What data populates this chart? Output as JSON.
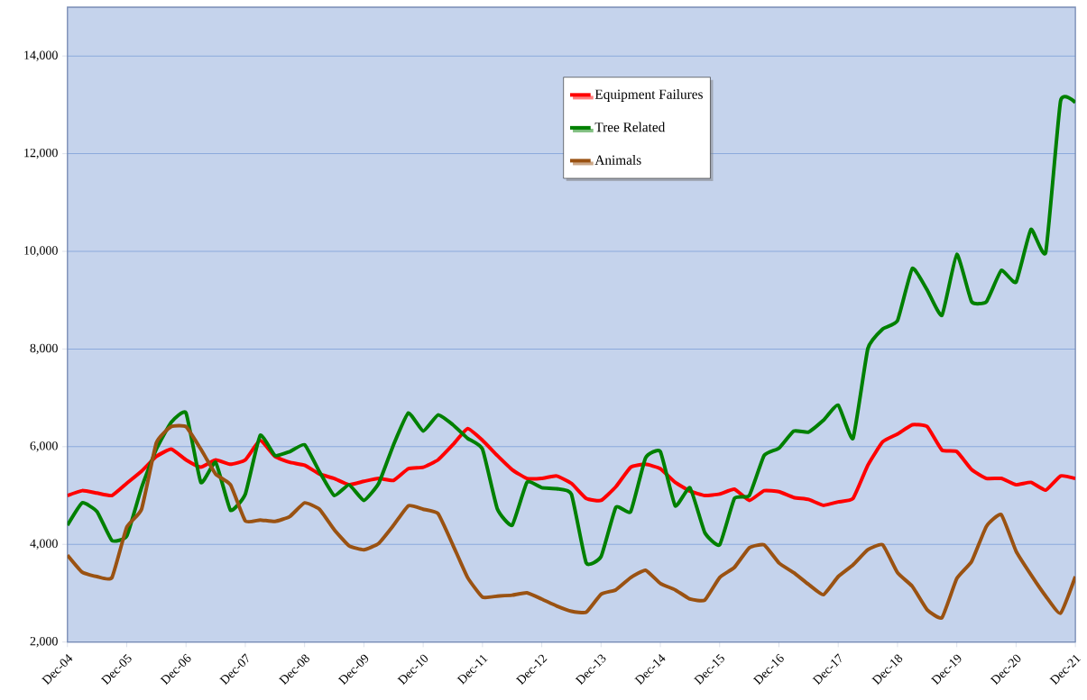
{
  "chart_data": {
    "type": "line",
    "x": [
      "2004-12",
      "2005-03",
      "2005-06",
      "2005-09",
      "2005-12",
      "2006-03",
      "2006-06",
      "2006-09",
      "2006-12",
      "2007-03",
      "2007-06",
      "2007-09",
      "2007-12",
      "2008-03",
      "2008-06",
      "2008-09",
      "2008-12",
      "2009-03",
      "2009-06",
      "2009-09",
      "2009-12",
      "2010-03",
      "2010-06",
      "2010-09",
      "2010-12",
      "2011-03",
      "2011-06",
      "2011-09",
      "2011-12",
      "2012-03",
      "2012-06",
      "2012-09",
      "2012-12",
      "2013-03",
      "2013-06",
      "2013-09",
      "2013-12",
      "2014-03",
      "2014-06",
      "2014-09",
      "2014-12",
      "2015-03",
      "2015-06",
      "2015-09",
      "2015-12",
      "2016-03",
      "2016-06",
      "2016-09",
      "2016-12",
      "2017-03",
      "2017-06",
      "2017-09",
      "2017-12",
      "2018-03",
      "2018-06",
      "2018-09",
      "2018-12",
      "2019-03",
      "2019-06",
      "2019-09",
      "2019-12",
      "2020-03",
      "2020-06",
      "2020-09",
      "2020-12",
      "2021-03",
      "2021-06",
      "2021-09",
      "2021-12"
    ],
    "series": [
      {
        "name": "Equipment Failures",
        "color": "#ff0000",
        "values": [
          5000,
          5100,
          5050,
          5000,
          5250,
          5500,
          5800,
          5950,
          5730,
          5580,
          5730,
          5640,
          5730,
          6130,
          5800,
          5680,
          5620,
          5440,
          5350,
          5220,
          5290,
          5350,
          5310,
          5550,
          5580,
          5730,
          6040,
          6370,
          6130,
          5820,
          5530,
          5350,
          5350,
          5400,
          5250,
          4940,
          4900,
          5180,
          5580,
          5640,
          5550,
          5270,
          5090,
          5000,
          5030,
          5130,
          4900,
          5100,
          5080,
          4960,
          4920,
          4800,
          4870,
          4940,
          5620,
          6100,
          6260,
          6450,
          6410,
          5930,
          5900,
          5530,
          5350,
          5350,
          5220,
          5270,
          5110,
          5400,
          5350
        ]
      },
      {
        "name": "Tree Related",
        "color": "#008000",
        "values": [
          4390,
          4850,
          4670,
          4080,
          4170,
          5160,
          5950,
          6500,
          6690,
          5270,
          5680,
          4700,
          5030,
          6230,
          5820,
          5900,
          6040,
          5490,
          5000,
          5220,
          4900,
          5250,
          6040,
          6690,
          6320,
          6650,
          6450,
          6170,
          5950,
          4730,
          4390,
          5270,
          5160,
          5140,
          5030,
          3620,
          3750,
          4760,
          4670,
          5770,
          5900,
          4790,
          5160,
          4240,
          3990,
          4940,
          5000,
          5820,
          5970,
          6320,
          6300,
          6540,
          6850,
          6170,
          8010,
          8410,
          8580,
          9650,
          9210,
          8690,
          9940,
          8970,
          8970,
          9610,
          9370,
          10450,
          9980,
          13080,
          13050
        ]
      },
      {
        "name": "Animals",
        "color": "#9a5212",
        "values": [
          3780,
          3430,
          3340,
          3320,
          4350,
          4720,
          6080,
          6410,
          6410,
          5950,
          5440,
          5220,
          4480,
          4500,
          4470,
          4570,
          4850,
          4720,
          4300,
          3970,
          3890,
          4020,
          4390,
          4790,
          4720,
          4630,
          3990,
          3320,
          2920,
          2940,
          2960,
          3010,
          2880,
          2740,
          2630,
          2610,
          2980,
          3070,
          3320,
          3470,
          3200,
          3070,
          2880,
          2860,
          3320,
          3530,
          3930,
          3990,
          3620,
          3420,
          3180,
          2970,
          3340,
          3580,
          3890,
          3990,
          3420,
          3140,
          2660,
          2500,
          3300,
          3650,
          4370,
          4610,
          3860,
          3380,
          2940,
          2590,
          3340
        ]
      }
    ],
    "xlim": [
      "2004-12",
      "2021-12"
    ],
    "xticks": [
      {
        "value": "2004-12",
        "label": "Dec-04"
      },
      {
        "value": "2005-12",
        "label": "Dec-05"
      },
      {
        "value": "2006-12",
        "label": "Dec-06"
      },
      {
        "value": "2007-12",
        "label": "Dec-07"
      },
      {
        "value": "2008-12",
        "label": "Dec-08"
      },
      {
        "value": "2009-12",
        "label": "Dec-09"
      },
      {
        "value": "2010-12",
        "label": "Dec-10"
      },
      {
        "value": "2011-12",
        "label": "Dec-11"
      },
      {
        "value": "2012-12",
        "label": "Dec-12"
      },
      {
        "value": "2013-12",
        "label": "Dec-13"
      },
      {
        "value": "2014-12",
        "label": "Dec-14"
      },
      {
        "value": "2015-12",
        "label": "Dec-15"
      },
      {
        "value": "2016-12",
        "label": "Dec-16"
      },
      {
        "value": "2017-12",
        "label": "Dec-17"
      },
      {
        "value": "2018-12",
        "label": "Dec-18"
      },
      {
        "value": "2019-12",
        "label": "Dec-19"
      },
      {
        "value": "2020-12",
        "label": "Dec-20"
      },
      {
        "value": "2021-12",
        "label": "Dec-21"
      }
    ],
    "ylim": [
      2000,
      15000
    ],
    "yticks": [
      {
        "value": 2000,
        "label": "2,000"
      },
      {
        "value": 4000,
        "label": "4,000"
      },
      {
        "value": 6000,
        "label": "6,000"
      },
      {
        "value": 8000,
        "label": "8,000"
      },
      {
        "value": 10000,
        "label": "10,000"
      },
      {
        "value": 12000,
        "label": "12,000"
      },
      {
        "value": 14000,
        "label": "14,000"
      }
    ],
    "grid": "y",
    "legend": "top",
    "marker": "none",
    "line_style": "solid"
  }
}
